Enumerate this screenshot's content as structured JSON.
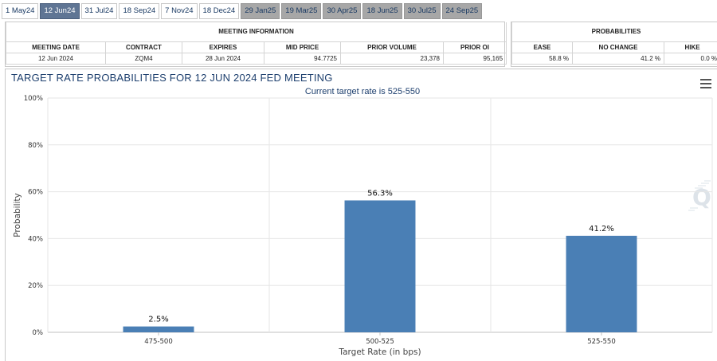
{
  "tabs": [
    {
      "label": "1 May24",
      "state": "normal"
    },
    {
      "label": "12 Jun24",
      "state": "active"
    },
    {
      "label": "31 Jul24",
      "state": "normal"
    },
    {
      "label": "18 Sep24",
      "state": "normal"
    },
    {
      "label": "7 Nov24",
      "state": "normal"
    },
    {
      "label": "18 Dec24",
      "state": "normal"
    },
    {
      "label": "29 Jan25",
      "state": "future"
    },
    {
      "label": "19 Mar25",
      "state": "future"
    },
    {
      "label": "30 Apr25",
      "state": "future"
    },
    {
      "label": "18 Jun25",
      "state": "future"
    },
    {
      "label": "30 Jul25",
      "state": "future"
    },
    {
      "label": "24 Sep25",
      "state": "future"
    }
  ],
  "meeting_info": {
    "caption": "MEETING INFORMATION",
    "headers": {
      "meeting_date": "MEETING DATE",
      "contract": "CONTRACT",
      "expires": "EXPIRES",
      "mid_price": "MID PRICE",
      "prior_volume": "PRIOR VOLUME",
      "prior_oi": "PRIOR OI"
    },
    "values": {
      "meeting_date": "12 Jun 2024",
      "contract": "ZQM4",
      "expires": "28 Jun 2024",
      "mid_price": "94.7725",
      "prior_volume": "23,378",
      "prior_oi": "95,165"
    }
  },
  "probabilities": {
    "caption": "PROBABILITIES",
    "headers": {
      "ease": "EASE",
      "no_change": "NO CHANGE",
      "hike": "HIKE"
    },
    "values": {
      "ease": "58.8 %",
      "no_change": "41.2 %",
      "hike": "0.0 %"
    }
  },
  "chart": {
    "title": "TARGET RATE PROBABILITIES FOR 12 JUN 2024 FED MEETING",
    "subtitle": "Current target rate is 525-550",
    "menu_icon": "hamburger-menu-icon",
    "watermark_icon": "q-logo-icon"
  },
  "chart_data": {
    "type": "bar",
    "categories": [
      "475-500",
      "500-525",
      "525-550"
    ],
    "values": [
      2.5,
      56.3,
      41.2
    ],
    "data_labels": [
      "2.5%",
      "56.3%",
      "41.2%"
    ],
    "xlabel": "Target Rate (in bps)",
    "ylabel": "Probability",
    "ylim": [
      0,
      100
    ],
    "yticks": [
      "0%",
      "20%",
      "40%",
      "60%",
      "80%",
      "100%"
    ],
    "grid": true,
    "bar_color": "#4a7fb5",
    "legend": "none"
  }
}
